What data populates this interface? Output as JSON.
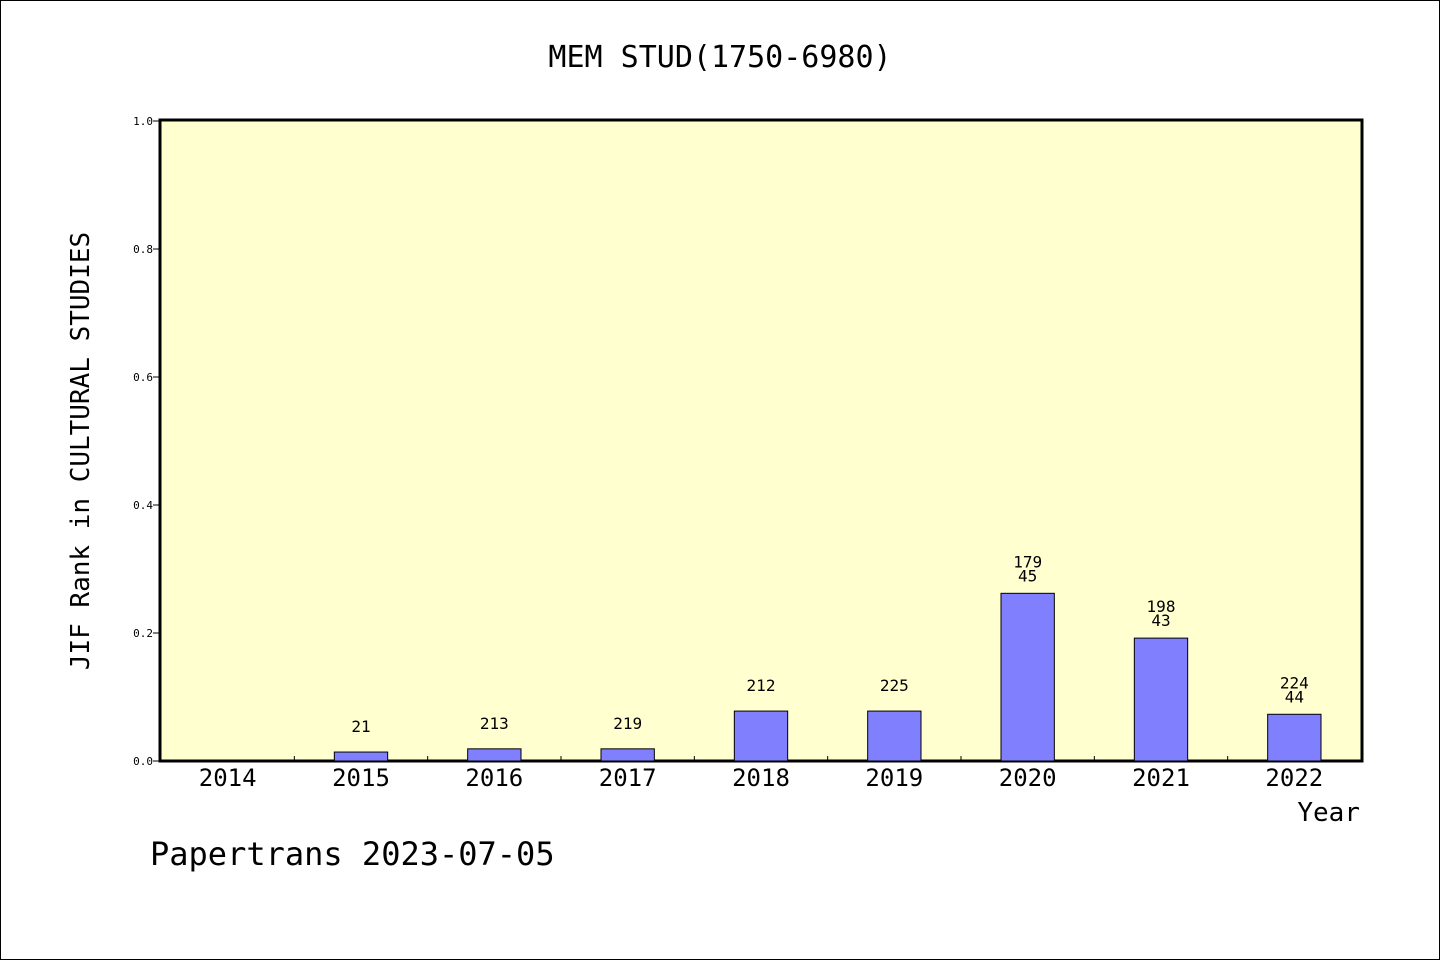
{
  "chart_data": {
    "type": "bar",
    "title": "MEM STUD(1750-6980)",
    "xlabel": "Year",
    "ylabel": "JIF Rank in CULTURAL STUDIES",
    "categories": [
      "2014",
      "2015",
      "2016",
      "2017",
      "2018",
      "2019",
      "2020",
      "2021",
      "2022"
    ],
    "values": [
      0,
      0.014,
      0.019,
      0.019,
      0.078,
      0.078,
      0.262,
      0.192,
      0.073
    ],
    "bar_labels": [
      {
        "top": "",
        "bottom": ""
      },
      {
        "top": "21",
        "bottom": ""
      },
      {
        "top": "213",
        "bottom": ""
      },
      {
        "top": "219",
        "bottom": ""
      },
      {
        "top": "212",
        "bottom": ""
      },
      {
        "top": "225",
        "bottom": ""
      },
      {
        "top": "179",
        "bottom": "45"
      },
      {
        "top": "198",
        "bottom": "43"
      },
      {
        "top": "224",
        "bottom": "44"
      }
    ],
    "ylim": [
      0,
      1.0
    ],
    "yticks": [
      "0.0",
      "0.2",
      "0.4",
      "0.6",
      "0.8",
      "1.0"
    ],
    "grid": false,
    "bar_color": "#8080ff",
    "plot_background": "#ffffd0"
  },
  "footer": "Papertrans 2023-07-05"
}
